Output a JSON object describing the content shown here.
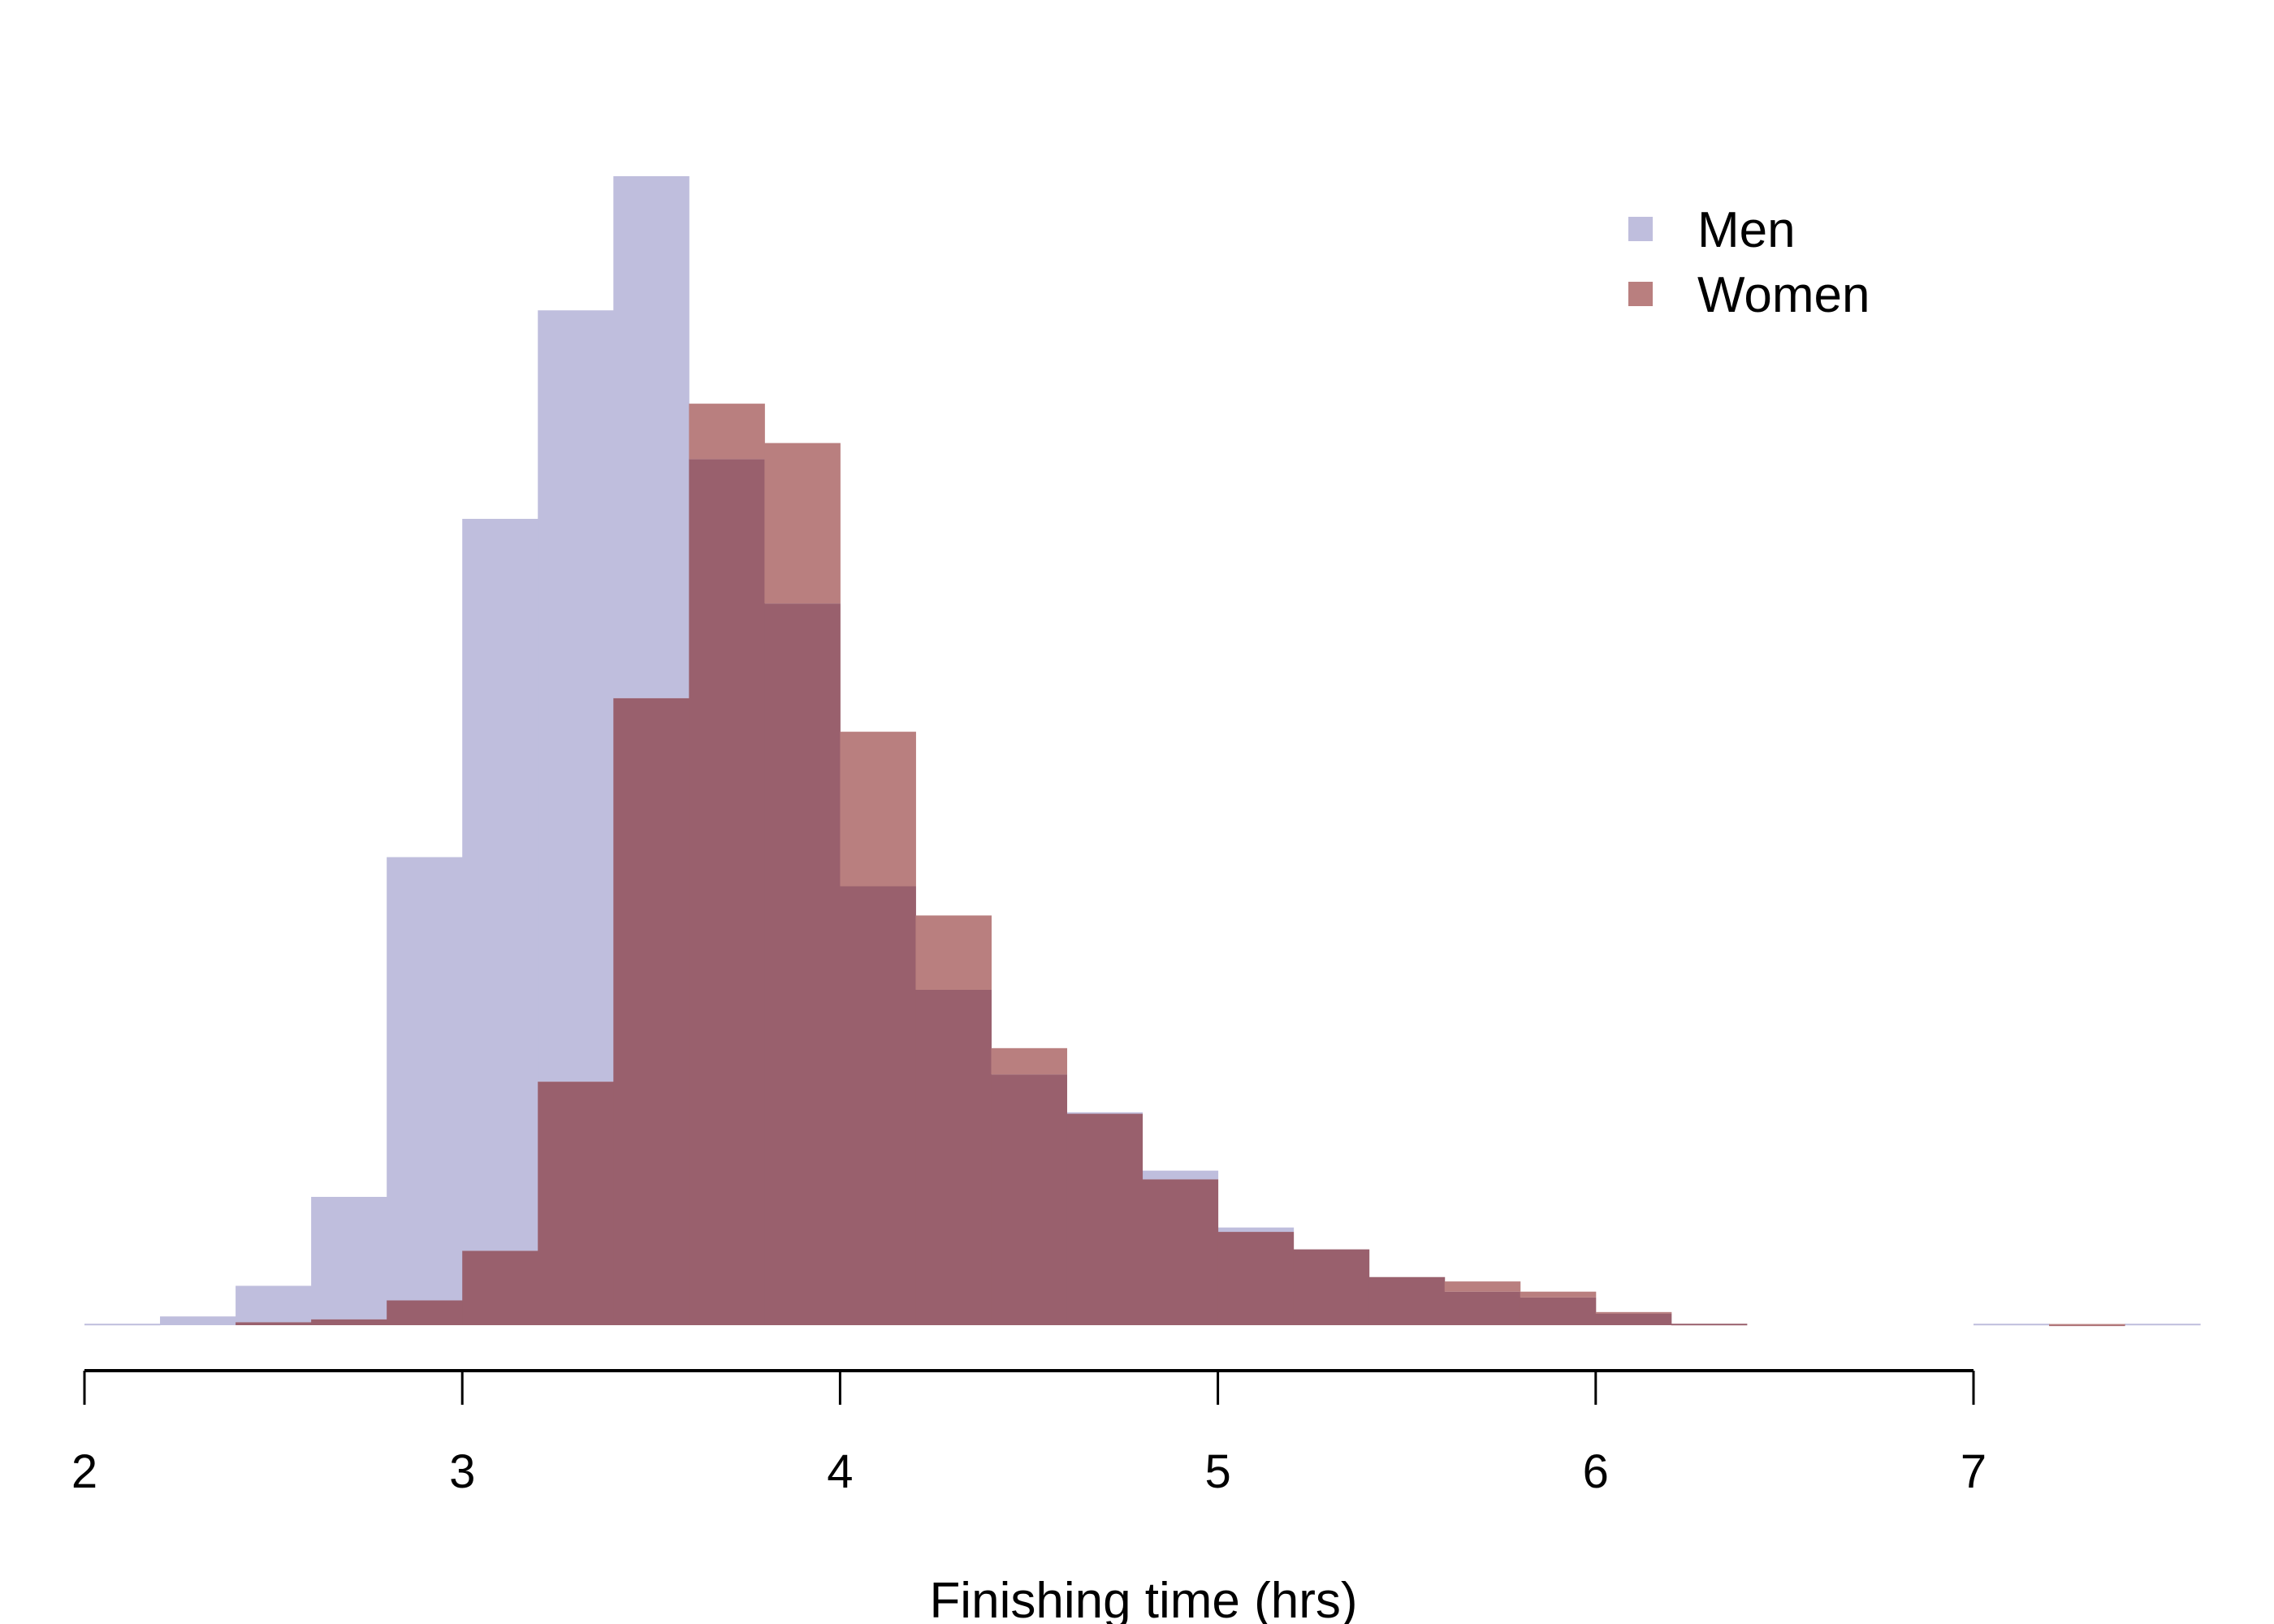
{
  "chart_data": {
    "type": "histogram",
    "title": "",
    "xlabel": "Finishing time (hrs)",
    "ylabel": "",
    "xlim": [
      2,
      7.6
    ],
    "x_ticks": [
      2,
      3,
      4,
      5,
      6,
      7
    ],
    "x_tick_labels": [
      "2",
      "3",
      "4",
      "5",
      "6",
      "7"
    ],
    "y_axis_shown": false,
    "grid": false,
    "bin_width": 0.2,
    "bin_starts": [
      2.0,
      2.2,
      2.4,
      2.6,
      2.8,
      3.0,
      3.2,
      3.4,
      3.6,
      3.8,
      4.0,
      4.2,
      4.4,
      4.6,
      4.8,
      5.0,
      5.2,
      5.4,
      5.6,
      5.8,
      6.0,
      6.2,
      6.4,
      6.6,
      6.8,
      7.0,
      7.2,
      7.4
    ],
    "value_units": "relative frequency (men peak = 788)",
    "ylim": [
      0,
      800
    ],
    "series": [
      {
        "name": "Men",
        "color": "#bfbedd",
        "values": [
          1,
          6,
          27,
          88,
          321,
          553,
          696,
          788,
          594,
          495,
          301,
          230,
          172,
          146,
          106,
          67,
          52,
          33,
          23,
          19,
          8,
          1,
          0,
          0,
          0,
          1,
          0.5,
          1
        ]
      },
      {
        "name": "Women",
        "color": "#b97f7f",
        "values": [
          0,
          0,
          2,
          4,
          17,
          51,
          167,
          430,
          632,
          605,
          407,
          281,
          190,
          145,
          100,
          64,
          52,
          33,
          30,
          23,
          9,
          1,
          0,
          0,
          0,
          0,
          0.8,
          0
        ]
      }
    ],
    "overlap_color": "#99606d",
    "legend": {
      "position": "top-right",
      "entries": [
        {
          "label": "Men",
          "color": "#bfbedd"
        },
        {
          "label": "Women",
          "color": "#b97f7f"
        }
      ]
    }
  }
}
